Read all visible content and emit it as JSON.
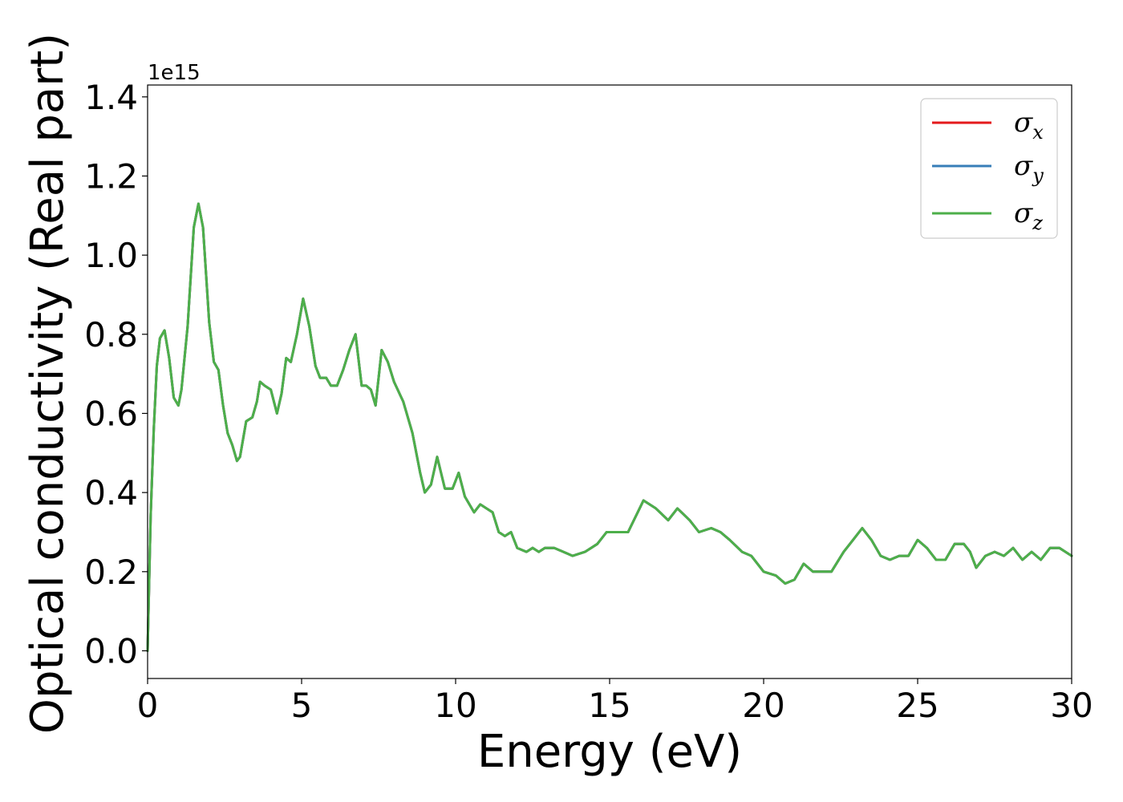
{
  "chart_data": {
    "type": "line",
    "title": "",
    "xlabel": "Energy (eV)",
    "ylabel": "Optical conductivity (Real part)",
    "y_offset_text": "1e15",
    "xlim": [
      0,
      30
    ],
    "ylim": [
      -0.07,
      1.43
    ],
    "xticks": [
      0,
      5,
      10,
      15,
      20,
      25,
      30
    ],
    "xtick_labels": [
      "0",
      "5",
      "10",
      "15",
      "20",
      "25",
      "30"
    ],
    "yticks": [
      0.0,
      0.2,
      0.4,
      0.6,
      0.8,
      1.0,
      1.2,
      1.4
    ],
    "ytick_labels": [
      "0.0",
      "0.2",
      "0.4",
      "0.6",
      "0.8",
      "1.0",
      "1.2",
      "1.4"
    ],
    "grid": false,
    "legend_position": "top-right",
    "x": [
      0.0,
      0.1,
      0.2,
      0.3,
      0.4,
      0.55,
      0.7,
      0.85,
      1.0,
      1.1,
      1.3,
      1.5,
      1.65,
      1.8,
      2.0,
      2.15,
      2.3,
      2.45,
      2.6,
      2.75,
      2.9,
      3.0,
      3.2,
      3.4,
      3.55,
      3.65,
      3.8,
      4.0,
      4.2,
      4.35,
      4.5,
      4.65,
      4.85,
      5.05,
      5.25,
      5.45,
      5.6,
      5.8,
      5.95,
      6.15,
      6.35,
      6.55,
      6.75,
      6.95,
      7.1,
      7.25,
      7.4,
      7.6,
      7.8,
      8.0,
      8.3,
      8.6,
      8.85,
      9.0,
      9.2,
      9.4,
      9.65,
      9.9,
      10.1,
      10.3,
      10.6,
      10.8,
      11.0,
      11.2,
      11.4,
      11.6,
      11.8,
      12.0,
      12.3,
      12.5,
      12.7,
      12.9,
      13.2,
      13.5,
      13.8,
      14.2,
      14.6,
      14.9,
      15.2,
      15.6,
      16.1,
      16.5,
      16.9,
      17.2,
      17.6,
      17.9,
      18.3,
      18.6,
      18.9,
      19.3,
      19.6,
      20.0,
      20.4,
      20.7,
      21.0,
      21.3,
      21.6,
      21.9,
      22.2,
      22.6,
      22.9,
      23.2,
      23.5,
      23.8,
      24.1,
      24.4,
      24.7,
      25.0,
      25.3,
      25.6,
      25.9,
      26.2,
      26.5,
      26.7,
      26.9,
      27.2,
      27.5,
      27.8,
      28.1,
      28.4,
      28.7,
      29.0,
      29.3,
      29.6,
      29.8,
      30.0
    ],
    "series": [
      {
        "name": "σx",
        "color": "#e41a1c",
        "y": [
          0.0,
          0.34,
          0.56,
          0.72,
          0.79,
          0.81,
          0.74,
          0.64,
          0.62,
          0.66,
          0.82,
          1.07,
          1.13,
          1.07,
          0.83,
          0.73,
          0.71,
          0.62,
          0.55,
          0.52,
          0.48,
          0.49,
          0.58,
          0.59,
          0.63,
          0.68,
          0.67,
          0.66,
          0.6,
          0.65,
          0.74,
          0.73,
          0.8,
          0.89,
          0.82,
          0.72,
          0.69,
          0.69,
          0.67,
          0.67,
          0.71,
          0.76,
          0.8,
          0.67,
          0.67,
          0.66,
          0.62,
          0.76,
          0.73,
          0.68,
          0.63,
          0.55,
          0.45,
          0.4,
          0.42,
          0.49,
          0.41,
          0.41,
          0.45,
          0.39,
          0.35,
          0.37,
          0.36,
          0.35,
          0.3,
          0.29,
          0.3,
          0.26,
          0.25,
          0.26,
          0.25,
          0.26,
          0.26,
          0.25,
          0.24,
          0.25,
          0.27,
          0.3,
          0.3,
          0.3,
          0.38,
          0.36,
          0.33,
          0.36,
          0.33,
          0.3,
          0.31,
          0.3,
          0.28,
          0.25,
          0.24,
          0.2,
          0.19,
          0.17,
          0.18,
          0.22,
          0.2,
          0.2,
          0.2,
          0.25,
          0.28,
          0.31,
          0.28,
          0.24,
          0.23,
          0.24,
          0.24,
          0.28,
          0.26,
          0.23,
          0.23,
          0.27,
          0.27,
          0.25,
          0.21,
          0.24,
          0.25,
          0.24,
          0.26,
          0.23,
          0.25,
          0.23,
          0.26,
          0.26,
          0.25,
          0.24
        ]
      },
      {
        "name": "σy",
        "color": "#377eb8",
        "y": [
          0.0,
          0.34,
          0.56,
          0.72,
          0.79,
          0.81,
          0.74,
          0.64,
          0.62,
          0.66,
          0.82,
          1.07,
          1.13,
          1.07,
          0.83,
          0.73,
          0.71,
          0.62,
          0.55,
          0.52,
          0.48,
          0.49,
          0.58,
          0.59,
          0.63,
          0.68,
          0.67,
          0.66,
          0.6,
          0.65,
          0.74,
          0.73,
          0.8,
          0.89,
          0.82,
          0.72,
          0.69,
          0.69,
          0.67,
          0.67,
          0.71,
          0.76,
          0.8,
          0.67,
          0.67,
          0.66,
          0.62,
          0.76,
          0.73,
          0.68,
          0.63,
          0.55,
          0.45,
          0.4,
          0.42,
          0.49,
          0.41,
          0.41,
          0.45,
          0.39,
          0.35,
          0.37,
          0.36,
          0.35,
          0.3,
          0.29,
          0.3,
          0.26,
          0.25,
          0.26,
          0.25,
          0.26,
          0.26,
          0.25,
          0.24,
          0.25,
          0.27,
          0.3,
          0.3,
          0.3,
          0.38,
          0.36,
          0.33,
          0.36,
          0.33,
          0.3,
          0.31,
          0.3,
          0.28,
          0.25,
          0.24,
          0.2,
          0.19,
          0.17,
          0.18,
          0.22,
          0.2,
          0.2,
          0.2,
          0.25,
          0.28,
          0.31,
          0.28,
          0.24,
          0.23,
          0.24,
          0.24,
          0.28,
          0.26,
          0.23,
          0.23,
          0.27,
          0.27,
          0.25,
          0.21,
          0.24,
          0.25,
          0.24,
          0.26,
          0.23,
          0.25,
          0.23,
          0.26,
          0.26,
          0.25,
          0.24
        ]
      },
      {
        "name": "σz",
        "color": "#4daf4a",
        "y": [
          0.0,
          0.34,
          0.56,
          0.72,
          0.79,
          0.81,
          0.74,
          0.64,
          0.62,
          0.66,
          0.82,
          1.07,
          1.13,
          1.07,
          0.83,
          0.73,
          0.71,
          0.62,
          0.55,
          0.52,
          0.48,
          0.49,
          0.58,
          0.59,
          0.63,
          0.68,
          0.67,
          0.66,
          0.6,
          0.65,
          0.74,
          0.73,
          0.8,
          0.89,
          0.82,
          0.72,
          0.69,
          0.69,
          0.67,
          0.67,
          0.71,
          0.76,
          0.8,
          0.67,
          0.67,
          0.66,
          0.62,
          0.76,
          0.73,
          0.68,
          0.63,
          0.55,
          0.45,
          0.4,
          0.42,
          0.49,
          0.41,
          0.41,
          0.45,
          0.39,
          0.35,
          0.37,
          0.36,
          0.35,
          0.3,
          0.29,
          0.3,
          0.26,
          0.25,
          0.26,
          0.25,
          0.26,
          0.26,
          0.25,
          0.24,
          0.25,
          0.27,
          0.3,
          0.3,
          0.3,
          0.38,
          0.36,
          0.33,
          0.36,
          0.33,
          0.3,
          0.31,
          0.3,
          0.28,
          0.25,
          0.24,
          0.2,
          0.19,
          0.17,
          0.18,
          0.22,
          0.2,
          0.2,
          0.2,
          0.25,
          0.28,
          0.31,
          0.28,
          0.24,
          0.23,
          0.24,
          0.24,
          0.28,
          0.26,
          0.23,
          0.23,
          0.27,
          0.27,
          0.25,
          0.21,
          0.24,
          0.25,
          0.24,
          0.26,
          0.23,
          0.25,
          0.23,
          0.26,
          0.26,
          0.25,
          0.24
        ]
      }
    ],
    "legend": [
      {
        "symbol": "σ",
        "subscript": "x",
        "color": "#e41a1c"
      },
      {
        "symbol": "σ",
        "subscript": "y",
        "color": "#377eb8"
      },
      {
        "symbol": "σ",
        "subscript": "z",
        "color": "#4daf4a"
      }
    ]
  }
}
